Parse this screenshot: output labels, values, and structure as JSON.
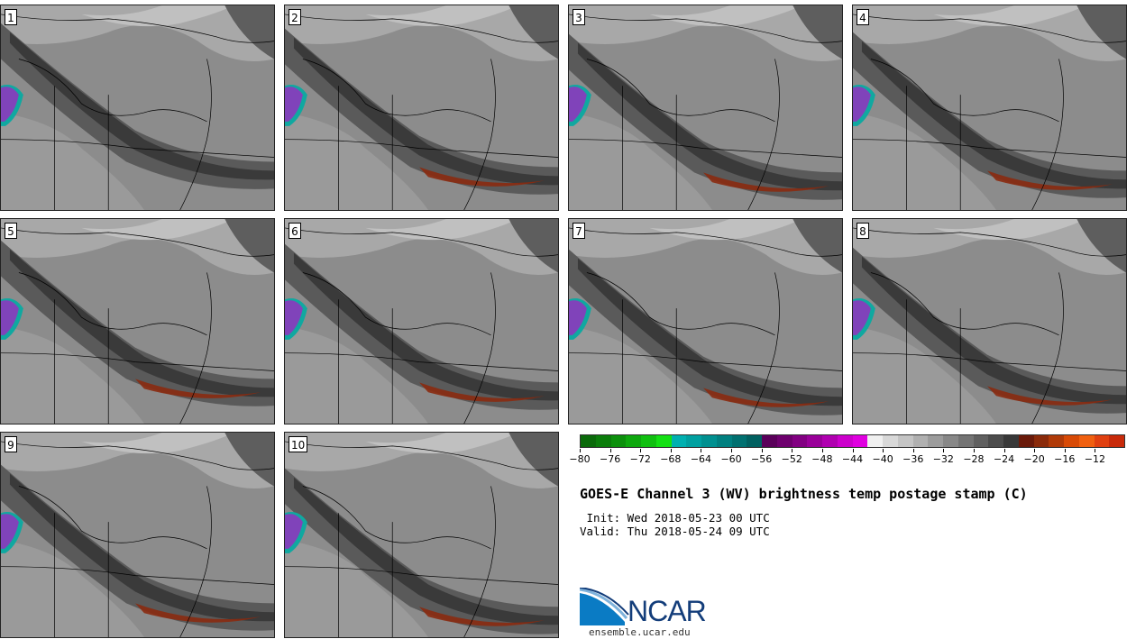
{
  "panels": [
    {
      "label": "1"
    },
    {
      "label": "2"
    },
    {
      "label": "3"
    },
    {
      "label": "4"
    },
    {
      "label": "5"
    },
    {
      "label": "6"
    },
    {
      "label": "7"
    },
    {
      "label": "8"
    },
    {
      "label": "9"
    },
    {
      "label": "10"
    }
  ],
  "colorbar": {
    "colors": [
      "#0a6a0a",
      "#0b7d0b",
      "#0c900c",
      "#0ea80e",
      "#10c010",
      "#14e014",
      "#00b0b0",
      "#00a0a0",
      "#009090",
      "#008080",
      "#007070",
      "#006060",
      "#5a005a",
      "#6e006e",
      "#820082",
      "#990099",
      "#b000b0",
      "#cc00cc",
      "#e000e0",
      "#f0f0f0",
      "#d8d8d8",
      "#c4c4c4",
      "#b0b0b0",
      "#9c9c9c",
      "#888888",
      "#747474",
      "#606060",
      "#4c4c4c",
      "#383838",
      "#6a1a0a",
      "#8a2a0a",
      "#b03a08",
      "#d84a06",
      "#f06010",
      "#e04010",
      "#c82a0a"
    ],
    "ticks": [
      "−80",
      "−76",
      "−72",
      "−68",
      "−64",
      "−60",
      "−56",
      "−52",
      "−48",
      "−44",
      "−40",
      "−36",
      "−32",
      "−28",
      "−24",
      "−20",
      "−16",
      "−12"
    ]
  },
  "title": "GOES-E Channel 3 (WV) brightness temp postage stamp (C)",
  "init": " Init: Wed 2018-05-23 00 UTC",
  "valid": "Valid: Thu 2018-05-24 09 UTC",
  "logo": {
    "text": "NCAR",
    "url": "ensemble.ucar.edu",
    "color": "#133d7a",
    "accent": "#0a7bc4"
  }
}
